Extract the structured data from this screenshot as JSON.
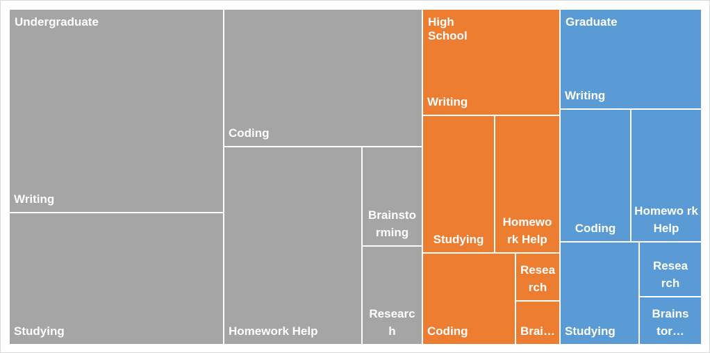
{
  "chart_data": {
    "type": "treemap",
    "title": "",
    "colors": {
      "Undergraduate": "#a5a5a5",
      "High School": "#ed7d31",
      "Graduate": "#5b9bd5"
    },
    "groups": [
      {
        "name": "Undergraduate",
        "children": [
          {
            "label": "Writing",
            "display": "Writing",
            "value": 102
          },
          {
            "label": "Studying",
            "display": "Studying",
            "value": 66
          },
          {
            "label": "Coding",
            "display": "Coding",
            "value": 64
          },
          {
            "label": "Homework Help",
            "display": "Homework Help",
            "value": 64
          },
          {
            "label": "Brainstorming",
            "display": "Brainsto rming",
            "value": 14
          },
          {
            "label": "Research",
            "display": "Researc h",
            "value": 14
          }
        ]
      },
      {
        "name": "High School",
        "children": [
          {
            "label": "Writing",
            "display": "Writing",
            "value": 34
          },
          {
            "label": "Studying",
            "display": "Studying",
            "value": 23
          },
          {
            "label": "Homework Help",
            "display": "Homewo rk Help",
            "value": 21
          },
          {
            "label": "Coding",
            "display": "Coding",
            "value": 20
          },
          {
            "label": "Research",
            "display": "Resea rch",
            "value": 5
          },
          {
            "label": "Brainstorming",
            "display": "Brai…",
            "value": 4.5
          }
        ]
      },
      {
        "name": "Graduate",
        "children": [
          {
            "label": "Writing",
            "display": "Writing",
            "value": 33
          },
          {
            "label": "Coding",
            "display": "Coding",
            "value": 22
          },
          {
            "label": "Homework Help",
            "display": "Homewo rk Help",
            "value": 22
          },
          {
            "label": "Studying",
            "display": "Studying",
            "value": 19
          },
          {
            "label": "Research",
            "display": "Resea rch",
            "value": 8
          },
          {
            "label": "Brainstorming",
            "display": "Brains tor…",
            "value": 7
          }
        ]
      }
    ]
  }
}
